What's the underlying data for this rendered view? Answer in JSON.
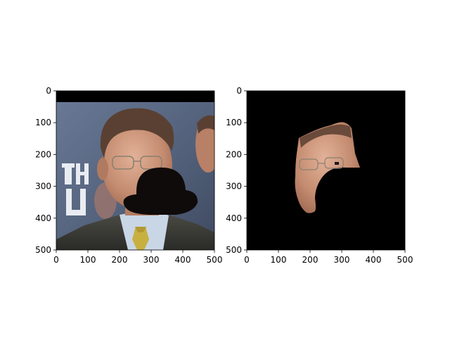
{
  "chart_data": [
    {
      "type": "image",
      "title": "",
      "xlabel": "",
      "ylabel": "",
      "xlim": [
        0,
        500
      ],
      "ylim": [
        500,
        0
      ],
      "xticks": [
        0,
        100,
        200,
        300,
        400,
        500
      ],
      "yticks": [
        0,
        100,
        200,
        300,
        400,
        500
      ],
      "content": "photo of a man in suit and glasses with a black bowler hat overlay covering lower face"
    },
    {
      "type": "image",
      "title": "",
      "xlabel": "",
      "ylabel": "",
      "xlim": [
        0,
        500
      ],
      "ylim": [
        500,
        0
      ],
      "xticks": [
        0,
        100,
        200,
        300,
        400,
        500
      ],
      "yticks": [
        0,
        100,
        200,
        300,
        400,
        500
      ],
      "content": "segmented face region on black background with a black cut-out"
    }
  ],
  "colors": {
    "hat": "#0f0b0a",
    "mask_background": "#000000",
    "suit": "#3a3a36",
    "shirt": "#c9d6e6",
    "tie": "#c8b040",
    "skin": "#c08a6e",
    "hair": "#5a4032",
    "sign_bg": "#52607a"
  }
}
